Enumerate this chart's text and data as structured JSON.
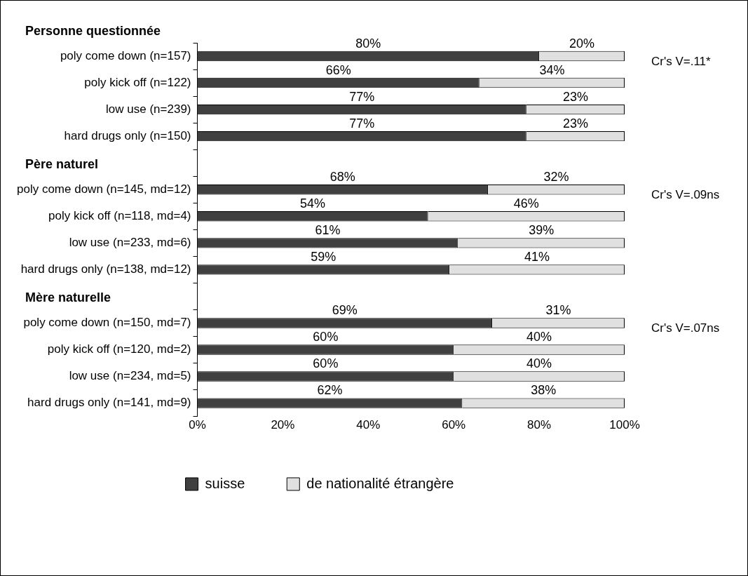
{
  "chart_data": {
    "type": "bar",
    "orientation": "horizontal",
    "stacked": true,
    "categories": [
      "poly come down (n=157)",
      "poly kick off (n=122)",
      "low use (n=239)",
      "hard drugs only (n=150)",
      null,
      "poly come down (n=145, md=12)",
      "poly kick off (n=118, md=4)",
      "low use (n=233, md=6)",
      "hard drugs only (n=138, md=12)",
      null,
      "poly come down (n=150, md=7)",
      "poly kick off (n=120, md=2)",
      "low use (n=234, md=5)",
      "hard drugs only (n=141, md=9)"
    ],
    "series": [
      {
        "name": "suisse",
        "color": "#404040",
        "values": [
          80,
          66,
          77,
          77,
          null,
          68,
          54,
          61,
          59,
          null,
          69,
          60,
          60,
          62
        ],
        "value_labels": [
          "80%",
          "66%",
          "77%",
          "77%",
          null,
          "68%",
          "54%",
          "61%",
          "59%",
          null,
          "69%",
          "60%",
          "60%",
          "62%"
        ]
      },
      {
        "name": "de nationalité étrangère",
        "color": "#e0e0e0",
        "values": [
          20,
          34,
          23,
          23,
          null,
          32,
          46,
          39,
          41,
          null,
          31,
          40,
          40,
          38
        ],
        "value_labels": [
          "20%",
          "34%",
          "23%",
          "23%",
          null,
          "32%",
          "46%",
          "39%",
          "41%",
          null,
          "31%",
          "40%",
          "40%",
          "38%"
        ]
      }
    ],
    "xlim": [
      0,
      100
    ],
    "xticks": [
      {
        "value": 0,
        "label": "0%"
      },
      {
        "value": 20,
        "label": "20%"
      },
      {
        "value": 40,
        "label": "40%"
      },
      {
        "value": 60,
        "label": "60%"
      },
      {
        "value": 80,
        "label": "80%"
      },
      {
        "value": 100,
        "label": "100%"
      }
    ],
    "annotations": [
      "Personne questionnée",
      "Cr's V=.11*",
      "Père naturel",
      "Cr's V=.09ns",
      "Mère naturelle",
      "Cr's V=.07ns"
    ],
    "grid": false,
    "legend": "bottom"
  }
}
